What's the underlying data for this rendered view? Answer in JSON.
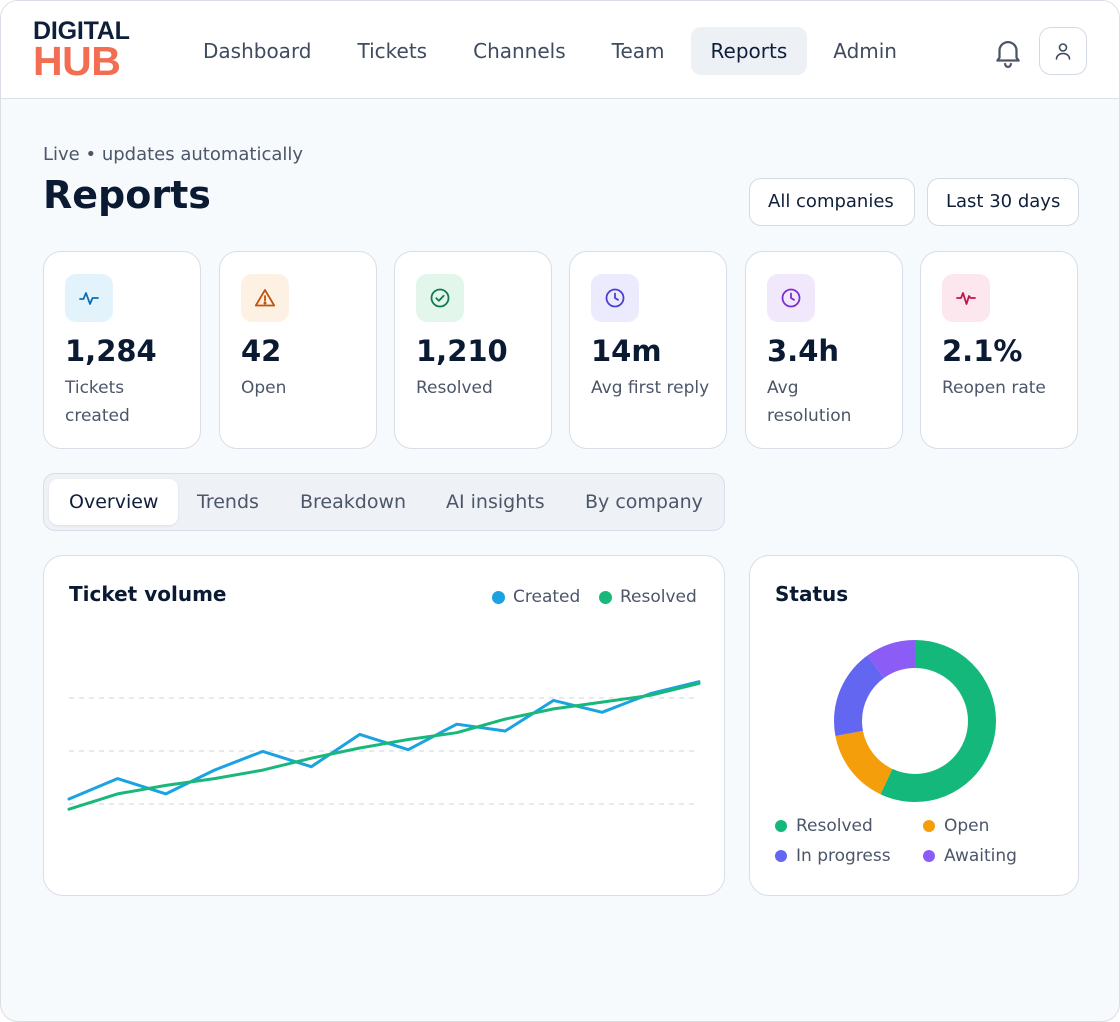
{
  "brand": {
    "line1": "DIGITAL",
    "line2": "HUB"
  },
  "nav": {
    "items": [
      {
        "id": "dashboard",
        "label": "Dashboard",
        "active": false
      },
      {
        "id": "tickets",
        "label": "Tickets",
        "active": false
      },
      {
        "id": "channels",
        "label": "Channels",
        "active": false
      },
      {
        "id": "team",
        "label": "Team",
        "active": false
      },
      {
        "id": "reports",
        "label": "Reports",
        "active": true
      },
      {
        "id": "admin",
        "label": "Admin",
        "active": false
      }
    ],
    "icons": [
      "bell-icon",
      "user-icon"
    ]
  },
  "page": {
    "status": "Live • updates automatically",
    "title": "Reports",
    "filters": {
      "company": "All companies",
      "range": "Last 30 days"
    }
  },
  "kpis": [
    {
      "value": "1,284",
      "label": "Tickets created",
      "icon": "activity-icon",
      "color": "#0b6fb8",
      "bg": "#e3f3fb"
    },
    {
      "value": "42",
      "label": "Open",
      "icon": "alert-triangle-icon",
      "color": "#c2520c",
      "bg": "#fdf1e4"
    },
    {
      "value": "1,210",
      "label": "Resolved",
      "icon": "check-circle-icon",
      "color": "#0f7a4f",
      "bg": "#e3f6ec"
    },
    {
      "value": "14m",
      "label": "Avg first reply",
      "icon": "clock-icon",
      "color": "#4b3fd1",
      "bg": "#eceafd"
    },
    {
      "value": "3.4h",
      "label": "Avg resolution",
      "icon": "clock-icon",
      "color": "#7a2fd0",
      "bg": "#f1e8fc"
    },
    {
      "value": "2.1%",
      "label": "Reopen rate",
      "icon": "pulse-icon",
      "color": "#c0154f",
      "bg": "#fce7ef"
    }
  ],
  "tabs": [
    {
      "label": "Overview",
      "active": true
    },
    {
      "label": "Trends",
      "active": false
    },
    {
      "label": "Breakdown",
      "active": false
    },
    {
      "label": "AI insights",
      "active": false
    },
    {
      "label": "By company",
      "active": false
    }
  ],
  "volume": {
    "title": "Ticket volume",
    "legend": {
      "created": "Created",
      "resolved": "Resolved"
    },
    "colors": {
      "created": "#1aa3e0",
      "resolved": "#19b87a"
    }
  },
  "status": {
    "title": "Status",
    "legend": {
      "resolved": "Resolved",
      "open": "Open",
      "in_progress": "In progress",
      "awaiting": "Awaiting"
    }
  },
  "chart_data": [
    {
      "type": "line",
      "title": "Ticket volume",
      "xlabel": "",
      "ylabel": "",
      "grid": true,
      "legend": "top-right",
      "y_scale": [
        0,
        100
      ],
      "series": [
        {
          "name": "Created",
          "color": "#1aa3e0",
          "values": [
            10,
            22,
            13,
            27,
            38,
            29,
            48,
            39,
            54,
            50,
            68,
            61,
            72,
            79
          ]
        },
        {
          "name": "Resolved",
          "color": "#19b87a",
          "values": [
            4,
            13,
            18,
            22,
            27,
            34,
            40,
            45,
            49,
            57,
            63,
            67,
            71,
            78
          ]
        }
      ]
    },
    {
      "type": "pie",
      "title": "Status",
      "legend": "bottom",
      "labels": [
        "Resolved",
        "Open",
        "In progress",
        "Awaiting"
      ],
      "values": [
        57,
        15,
        18,
        10
      ],
      "colors": [
        "#14b87a",
        "#f59e0b",
        "#6366f1",
        "#8b5cf6"
      ]
    }
  ]
}
